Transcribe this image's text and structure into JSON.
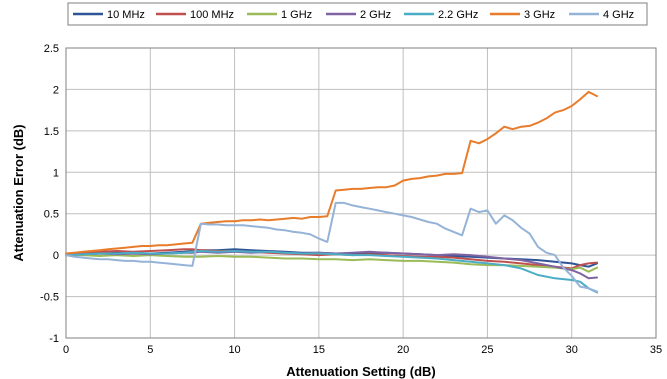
{
  "chart_data": {
    "type": "line",
    "xlabel": "Attenuation Setting (dB)",
    "ylabel": "Attenuation Error (dB)",
    "xlim": [
      0,
      35
    ],
    "ylim": [
      -1,
      2.5
    ],
    "xticks": [
      "0",
      "5",
      "10",
      "15",
      "20",
      "25",
      "30",
      "35"
    ],
    "yticks": [
      "-1",
      "-0.5",
      "0",
      "0.5",
      "1",
      "1.5",
      "2",
      "2.5"
    ],
    "grid": true,
    "legend_position": "top",
    "series": [
      {
        "name": "10 MHz",
        "color": "#2f5597",
        "x": [
          0,
          1,
          2,
          3,
          4,
          5,
          6,
          7,
          7.5,
          8,
          9,
          10,
          11,
          12,
          13,
          14,
          15,
          16,
          17,
          18,
          19,
          20,
          21,
          22,
          23,
          24,
          25,
          26,
          27,
          28,
          29,
          30,
          30.5,
          31,
          31.5
        ],
        "y": [
          0.0,
          0.01,
          0.02,
          0.03,
          0.02,
          0.02,
          0.03,
          0.04,
          0.05,
          0.06,
          0.06,
          0.07,
          0.06,
          0.05,
          0.04,
          0.03,
          0.03,
          0.02,
          0.02,
          0.02,
          0.03,
          0.02,
          0.01,
          0.0,
          -0.01,
          -0.02,
          -0.03,
          -0.04,
          -0.05,
          -0.06,
          -0.08,
          -0.1,
          -0.12,
          -0.14,
          -0.1
        ]
      },
      {
        "name": "100 MHz",
        "color": "#c0504d",
        "x": [
          0,
          1,
          2,
          3,
          4,
          5,
          6,
          7,
          7.5,
          8,
          9,
          10,
          11,
          12,
          13,
          14,
          15,
          16,
          17,
          18,
          19,
          20,
          21,
          22,
          23,
          24,
          25,
          26,
          27,
          28,
          29,
          30,
          30.5,
          31,
          31.5
        ],
        "y": [
          0.0,
          0.02,
          0.04,
          0.05,
          0.04,
          0.05,
          0.06,
          0.07,
          0.07,
          0.06,
          0.05,
          0.05,
          0.04,
          0.03,
          0.02,
          0.01,
          0.0,
          0.01,
          0.0,
          0.01,
          0.0,
          -0.01,
          -0.02,
          -0.02,
          -0.03,
          -0.05,
          -0.07,
          -0.08,
          -0.1,
          -0.12,
          -0.14,
          -0.16,
          -0.12,
          -0.1,
          -0.09
        ]
      },
      {
        "name": "1 GHz",
        "color": "#9bbb59",
        "x": [
          0,
          1,
          2,
          3,
          4,
          5,
          6,
          7,
          7.5,
          8,
          9,
          10,
          11,
          12,
          13,
          14,
          15,
          16,
          17,
          18,
          19,
          20,
          21,
          22,
          23,
          24,
          25,
          26,
          27,
          28,
          29,
          30,
          30.5,
          31,
          31.5
        ],
        "y": [
          0.0,
          0.0,
          -0.01,
          0.0,
          -0.01,
          0.0,
          -0.01,
          -0.02,
          -0.02,
          -0.02,
          -0.01,
          -0.02,
          -0.02,
          -0.03,
          -0.04,
          -0.04,
          -0.05,
          -0.05,
          -0.06,
          -0.05,
          -0.06,
          -0.07,
          -0.07,
          -0.08,
          -0.09,
          -0.11,
          -0.12,
          -0.12,
          -0.13,
          -0.14,
          -0.15,
          -0.17,
          -0.15,
          -0.2,
          -0.15
        ]
      },
      {
        "name": "2 GHz",
        "color": "#8064a2",
        "x": [
          0,
          1,
          2,
          3,
          4,
          5,
          6,
          7,
          7.5,
          8,
          9,
          10,
          11,
          12,
          13,
          14,
          15,
          16,
          17,
          18,
          19,
          20,
          21,
          22,
          23,
          24,
          25,
          26,
          27,
          28,
          29,
          30,
          30.5,
          31,
          31.5
        ],
        "y": [
          0.0,
          0.01,
          0.02,
          0.01,
          0.02,
          0.01,
          0.02,
          0.03,
          0.03,
          0.04,
          0.03,
          0.04,
          0.03,
          0.04,
          0.03,
          0.02,
          0.03,
          0.02,
          0.03,
          0.04,
          0.03,
          0.02,
          0.01,
          0.0,
          0.01,
          0.0,
          -0.02,
          -0.04,
          -0.06,
          -0.1,
          -0.14,
          -0.18,
          -0.22,
          -0.28,
          -0.27
        ]
      },
      {
        "name": "2.2 GHz",
        "color": "#4bacc6",
        "x": [
          0,
          1,
          2,
          3,
          4,
          5,
          6,
          7,
          7.5,
          8,
          9,
          10,
          11,
          12,
          13,
          14,
          15,
          16,
          17,
          18,
          19,
          20,
          21,
          22,
          23,
          24,
          25,
          26,
          27,
          28,
          29,
          30,
          30.5,
          31,
          31.5
        ],
        "y": [
          0.0,
          0.01,
          0.02,
          0.02,
          0.03,
          0.02,
          0.02,
          0.03,
          0.04,
          0.05,
          0.04,
          0.05,
          0.04,
          0.04,
          0.03,
          0.02,
          0.02,
          0.01,
          0.0,
          0.0,
          -0.01,
          -0.02,
          -0.03,
          -0.04,
          -0.06,
          -0.08,
          -0.1,
          -0.12,
          -0.16,
          -0.24,
          -0.28,
          -0.3,
          -0.32,
          -0.4,
          -0.45
        ]
      },
      {
        "name": "3 GHz",
        "color": "#e87c2b",
        "x": [
          0,
          0.5,
          1,
          1.5,
          2,
          2.5,
          3,
          3.5,
          4,
          4.5,
          5,
          5.5,
          6,
          6.5,
          7,
          7.5,
          8,
          8.5,
          9,
          9.5,
          10,
          10.5,
          11,
          11.5,
          12,
          12.5,
          13,
          13.5,
          14,
          14.5,
          15,
          15.5,
          16,
          16.5,
          17,
          17.5,
          18,
          18.5,
          19,
          19.5,
          20,
          20.5,
          21,
          21.5,
          22,
          22.5,
          23,
          23.5,
          24,
          24.5,
          25,
          25.5,
          26,
          26.5,
          27,
          27.5,
          28,
          28.5,
          29,
          29.5,
          30,
          30.5,
          31,
          31.5
        ],
        "y": [
          0.02,
          0.03,
          0.04,
          0.05,
          0.06,
          0.07,
          0.08,
          0.09,
          0.1,
          0.11,
          0.11,
          0.12,
          0.12,
          0.13,
          0.14,
          0.15,
          0.38,
          0.39,
          0.4,
          0.41,
          0.41,
          0.42,
          0.42,
          0.43,
          0.42,
          0.43,
          0.44,
          0.45,
          0.44,
          0.46,
          0.46,
          0.47,
          0.78,
          0.79,
          0.8,
          0.8,
          0.81,
          0.82,
          0.82,
          0.84,
          0.9,
          0.92,
          0.93,
          0.95,
          0.96,
          0.98,
          0.98,
          0.99,
          1.38,
          1.35,
          1.4,
          1.47,
          1.55,
          1.52,
          1.55,
          1.56,
          1.6,
          1.65,
          1.72,
          1.75,
          1.8,
          1.88,
          1.97,
          1.92
        ]
      },
      {
        "name": "4 GHz",
        "color": "#95b3d7",
        "x": [
          0,
          0.5,
          1,
          1.5,
          2,
          2.5,
          3,
          3.5,
          4,
          4.5,
          5,
          5.5,
          6,
          6.5,
          7,
          7.5,
          8,
          8.5,
          9,
          9.5,
          10,
          10.5,
          11,
          11.5,
          12,
          12.5,
          13,
          13.5,
          14,
          14.5,
          15,
          15.5,
          16,
          16.5,
          17,
          17.5,
          18,
          18.5,
          19,
          19.5,
          20,
          20.5,
          21,
          21.5,
          22,
          22.5,
          23,
          23.5,
          24,
          24.5,
          25,
          25.5,
          26,
          26.5,
          27,
          27.5,
          28,
          28.5,
          29,
          29.5,
          30,
          30.5,
          31,
          31.5
        ],
        "y": [
          0.0,
          -0.02,
          -0.03,
          -0.04,
          -0.05,
          -0.05,
          -0.06,
          -0.07,
          -0.07,
          -0.08,
          -0.08,
          -0.09,
          -0.1,
          -0.11,
          -0.12,
          -0.13,
          0.38,
          0.37,
          0.37,
          0.36,
          0.36,
          0.36,
          0.35,
          0.34,
          0.33,
          0.31,
          0.3,
          0.28,
          0.27,
          0.25,
          0.2,
          0.16,
          0.63,
          0.63,
          0.6,
          0.58,
          0.56,
          0.54,
          0.52,
          0.5,
          0.48,
          0.46,
          0.43,
          0.4,
          0.38,
          0.32,
          0.28,
          0.24,
          0.56,
          0.52,
          0.54,
          0.38,
          0.48,
          0.42,
          0.33,
          0.26,
          0.1,
          0.03,
          0.0,
          -0.15,
          -0.25,
          -0.38,
          -0.4,
          -0.44
        ]
      }
    ]
  }
}
